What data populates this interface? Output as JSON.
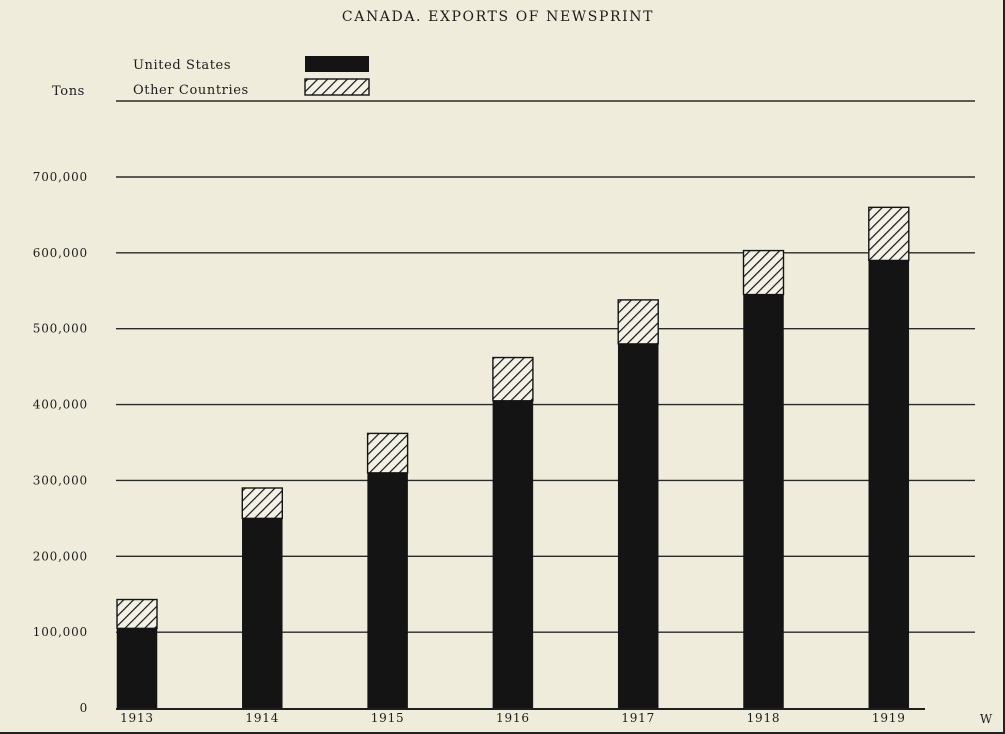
{
  "chart_data": {
    "type": "bar",
    "stacked": true,
    "title": "CANADA. EXPORTS OF NEWSPRINT",
    "ylabel": "Tons",
    "xlabel": "",
    "categories": [
      "1913",
      "1914",
      "1915",
      "1916",
      "1917",
      "1918",
      "1919"
    ],
    "series": [
      {
        "name": "United States",
        "values": [
          105000,
          250000,
          310000,
          405000,
          480000,
          545000,
          590000
        ],
        "fill": "solid",
        "color": "#141414"
      },
      {
        "name": "Other Countries",
        "values": [
          38000,
          40000,
          52000,
          57000,
          58000,
          58000,
          70000
        ],
        "fill": "hatched",
        "color": "#141414"
      }
    ],
    "ylim": [
      0,
      700000
    ],
    "yticks": [
      0,
      100000,
      200000,
      300000,
      400000,
      500000,
      600000,
      700000
    ],
    "ytick_labels": [
      "0",
      "100,000",
      "200,000",
      "300,000",
      "400,000",
      "500,000",
      "600,000",
      "700,000"
    ],
    "grid": true,
    "legend_position": "top-left"
  },
  "corner_mark": "W"
}
